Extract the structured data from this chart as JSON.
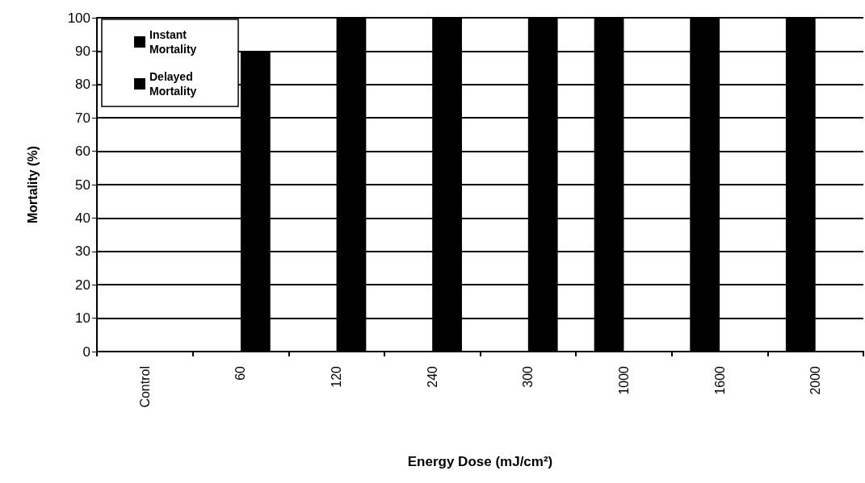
{
  "chart_data": {
    "type": "bar",
    "xlabel": "Energy Dose (mJ/cm²)",
    "ylabel": "Mortality (%)",
    "categories": [
      "Control",
      "60",
      "120",
      "240",
      "300",
      "1000",
      "1600",
      "2000"
    ],
    "series": [
      {
        "name": "Instant Mortality",
        "color": "#000000",
        "values": [
          0,
          0,
          0,
          0,
          0,
          100,
          100,
          100
        ]
      },
      {
        "name": "Delayed Mortality",
        "color": "#000000",
        "values": [
          0,
          90,
          100,
          100,
          100,
          0,
          0,
          0
        ]
      }
    ],
    "ylim": [
      0,
      100
    ],
    "yticks": [
      0,
      10,
      20,
      30,
      40,
      50,
      60,
      70,
      80,
      90,
      100
    ],
    "grid": "y",
    "legend": "top left"
  }
}
